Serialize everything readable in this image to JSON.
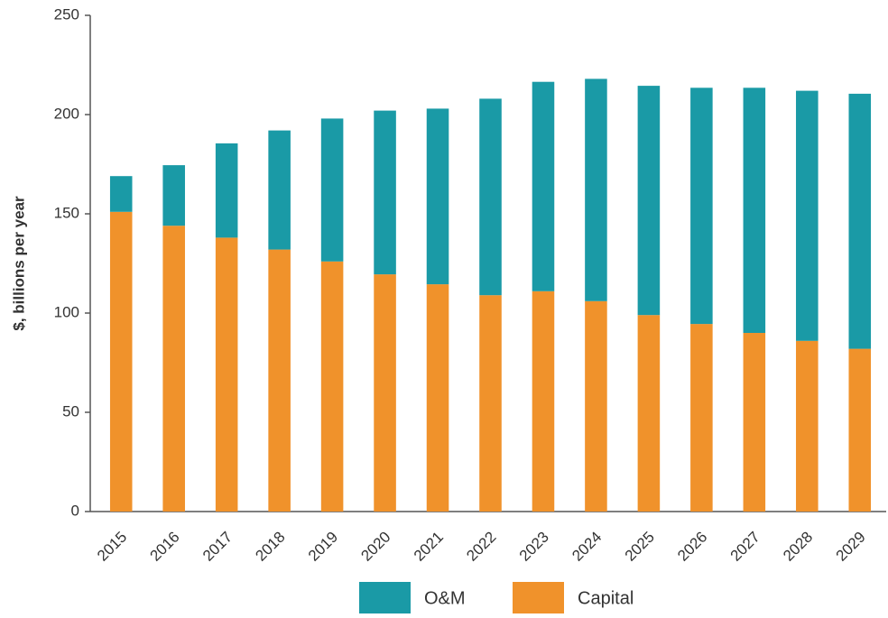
{
  "chart_data": {
    "type": "stacked_bar",
    "y_label": "$, billions per year",
    "categories": [
      "2015",
      "2016",
      "2017",
      "2018",
      "2019",
      "2020",
      "2021",
      "2022",
      "2023",
      "2024",
      "2025",
      "2026",
      "2027",
      "2028",
      "2029"
    ],
    "series": [
      {
        "name": "O&M",
        "color": "#1a9aa6",
        "values": [
          18,
          30.5,
          47.5,
          60,
          72,
          82.5,
          88.5,
          99,
          105.5,
          112,
          115.5,
          119,
          123.5,
          126,
          128.5
        ]
      },
      {
        "name": "Capital",
        "color": "#f0922b",
        "values": [
          151,
          144,
          138,
          132,
          126,
          119.5,
          114.5,
          109,
          111,
          106,
          99,
          94.5,
          90,
          86,
          82
        ]
      }
    ],
    "ylim": [
      0,
      250
    ],
    "yticks": [
      0,
      50,
      100,
      150,
      200,
      250
    ],
    "grid": false
  }
}
